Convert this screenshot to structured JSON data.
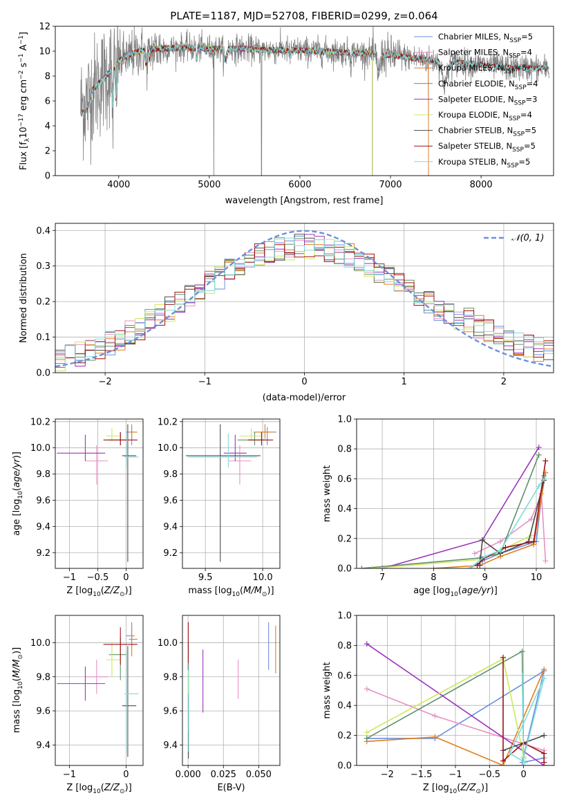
{
  "figure": {
    "title": "PLATE=1187, MJD=52708, FIBERID=0299, z=0.064"
  },
  "colors": {
    "Chabrier MILES": "#6a8fdc",
    "Salpeter MILES": "#e690c4",
    "Kroupa MILES": "#e07d1e",
    "Chabrier ELODIE": "#5f8f6a",
    "Salpeter ELODIE": "#9a33b8",
    "Kroupa ELODIE": "#cde85a",
    "Chabrier STELIB": "#4a4a4a",
    "Salpeter STELIB": "#a01010",
    "Kroupa STELIB": "#7fdcdc",
    "data": "#808080",
    "normal": "#6a8fdc"
  },
  "chart_data": [
    {
      "id": "spectrum",
      "type": "line",
      "title": "PLATE=1187, MJD=52708, FIBERID=0299, z=0.064",
      "xlabel": "wavelength [Angstrom, rest frame]",
      "ylabel": "Flux [f_λ10^-17 erg cm^-2 s^-1 A^-1]",
      "xlim": [
        3300,
        8800
      ],
      "ylim": [
        0,
        12
      ],
      "xticks": [
        4000,
        5000,
        6000,
        7000,
        8000
      ],
      "yticks": [
        0,
        2,
        4,
        6,
        8,
        10,
        12
      ],
      "legend_position": "top-right",
      "legend": [
        {
          "model": "Chabrier MILES",
          "nssp": 5
        },
        {
          "model": "Salpeter MILES",
          "nssp": 4
        },
        {
          "model": "Kroupa MILES",
          "nssp": 5
        },
        {
          "model": "Chabrier ELODIE",
          "nssp": 4
        },
        {
          "model": "Salpeter ELODIE",
          "nssp": 3
        },
        {
          "model": "Kroupa ELODIE",
          "nssp": 4
        },
        {
          "model": "Chabrier STELIB",
          "nssp": 5
        },
        {
          "model": "Salpeter STELIB",
          "nssp": 5
        },
        {
          "model": "Kroupa STELIB",
          "nssp": 5
        }
      ],
      "continuum": {
        "x": [
          3580,
          3650,
          3700,
          3780,
          3850,
          3950,
          4050,
          4150,
          4300,
          4500,
          4700,
          5000,
          5300,
          5600,
          5900,
          6200,
          6500,
          6800,
          7100,
          7400,
          7700,
          8000,
          8300,
          8750
        ],
        "y": [
          5.6,
          5.9,
          6.8,
          7.4,
          7.9,
          8.8,
          9.5,
          9.8,
          10.1,
          10.2,
          10.3,
          10.2,
          10.2,
          10.1,
          10.1,
          10.0,
          9.9,
          9.8,
          9.6,
          9.3,
          9.1,
          8.9,
          8.7,
          8.6
        ]
      },
      "model_cutoffs": {
        "Kroupa MILES": 7420,
        "Salpeter MILES": 7420,
        "Chabrier MILES": 7420,
        "Kroupa ELODIE": 6800,
        "Salpeter ELODIE": 6800,
        "Chabrier ELODIE": 6800
      }
    },
    {
      "id": "residuals",
      "type": "line",
      "xlabel": "(data-model)/error",
      "ylabel": "Normed distribution",
      "xlim": [
        -2.5,
        2.5
      ],
      "ylim": [
        0,
        0.42
      ],
      "xticks": [
        -2,
        -1,
        0,
        1,
        2
      ],
      "yticks": [
        0.0,
        0.1,
        0.2,
        0.3,
        0.4
      ],
      "legend_position": "top-right",
      "legend": [
        "𝒩(0, 1)"
      ],
      "bin_width": 0.1,
      "envelope_std": 1.15
    },
    {
      "id": "age_vs_Z",
      "type": "scatter",
      "xlabel": "Z [log10(Z/Z☉)]",
      "ylabel": "age [log10(age/yr)]",
      "xlim": [
        -1.25,
        0.3
      ],
      "ylim": [
        9.08,
        10.22
      ],
      "xticks": [
        -1,
        -0.5,
        0
      ],
      "xticklabels": [
        "−1",
        "−0.5",
        "0"
      ],
      "yticks": [
        9.2,
        9.4,
        9.6,
        9.8,
        10.0,
        10.2
      ],
      "points": [
        {
          "model": "Chabrier MILES",
          "x": 0.1,
          "xerr": [
            0.1,
            0.05
          ],
          "y": 10.12,
          "yerr": [
            0.1,
            0.04
          ]
        },
        {
          "model": "Salpeter MILES",
          "x": -0.52,
          "xerr": [
            0.2,
            0.2
          ],
          "y": 9.9,
          "yerr": [
            0.18,
            0.12
          ]
        },
        {
          "model": "Kroupa MILES",
          "x": 0.1,
          "xerr": [
            0.05,
            0.1
          ],
          "y": 10.12,
          "yerr": [
            0.05,
            0.06
          ]
        },
        {
          "model": "Chabrier ELODIE",
          "x": -0.1,
          "xerr": [
            0.2,
            0.1
          ],
          "y": 10.06,
          "yerr": [
            0.04,
            0.06
          ]
        },
        {
          "model": "Salpeter ELODIE",
          "x": -0.72,
          "xerr": [
            0.5,
            0.35
          ],
          "y": 9.96,
          "yerr": [
            0.06,
            0.14
          ]
        },
        {
          "model": "Kroupa ELODIE",
          "x": -0.25,
          "xerr": [
            0.1,
            0.15
          ],
          "y": 10.09,
          "yerr": [
            0.04,
            0.06
          ]
        },
        {
          "model": "Chabrier STELIB",
          "x": 0.03,
          "xerr": [
            0.1,
            0.15
          ],
          "y": 9.94,
          "yerr": [
            0.81,
            0.24
          ]
        },
        {
          "model": "Salpeter STELIB",
          "x": -0.1,
          "xerr": [
            0.3,
            0.3
          ],
          "y": 10.06,
          "yerr": [
            0.04,
            0.06
          ]
        },
        {
          "model": "Kroupa STELIB",
          "x": 0.02,
          "xerr": [
            0.05,
            0.2
          ],
          "y": 9.93,
          "yerr": [
            0.08,
            0.18
          ]
        }
      ]
    },
    {
      "id": "age_vs_mass",
      "type": "scatter",
      "xlabel": "mass [log10(M/M☉)]",
      "ylabel": "",
      "xlim": [
        9.3,
        10.15
      ],
      "ylim": [
        9.08,
        10.22
      ],
      "xticks": [
        9.5,
        10.0
      ],
      "xticklabels": [
        "9.5",
        "10.0"
      ],
      "yticks": [
        9.2,
        9.4,
        9.6,
        9.8,
        10.0,
        10.2
      ],
      "points": [
        {
          "model": "Chabrier MILES",
          "x": 10.04,
          "xerr": [
            0.06,
            0.08
          ],
          "y": 10.12,
          "yerr": [
            0.1,
            0.04
          ]
        },
        {
          "model": "Salpeter MILES",
          "x": 9.8,
          "xerr": [
            0.1,
            0.1
          ],
          "y": 9.9,
          "yerr": [
            0.18,
            0.12
          ]
        },
        {
          "model": "Kroupa MILES",
          "x": 10.02,
          "xerr": [
            0.1,
            0.08
          ],
          "y": 10.12,
          "yerr": [
            0.05,
            0.06
          ]
        },
        {
          "model": "Chabrier ELODIE",
          "x": 9.93,
          "xerr": [
            0.15,
            0.1
          ],
          "y": 10.06,
          "yerr": [
            0.04,
            0.06
          ]
        },
        {
          "model": "Salpeter ELODIE",
          "x": 9.76,
          "xerr": [
            0.1,
            0.1
          ],
          "y": 9.96,
          "yerr": [
            0.06,
            0.14
          ]
        },
        {
          "model": "Kroupa ELODIE",
          "x": 9.9,
          "xerr": [
            0.1,
            0.1
          ],
          "y": 10.09,
          "yerr": [
            0.04,
            0.06
          ]
        },
        {
          "model": "Chabrier STELIB",
          "x": 9.63,
          "xerr": [
            0.3,
            0.35
          ],
          "y": 9.94,
          "yerr": [
            0.81,
            0.24
          ]
        },
        {
          "model": "Salpeter STELIB",
          "x": 9.99,
          "xerr": [
            0.12,
            0.1
          ],
          "y": 10.06,
          "yerr": [
            0.04,
            0.06
          ]
        },
        {
          "model": "Kroupa STELIB",
          "x": 9.7,
          "xerr": [
            0.35,
            0.25
          ],
          "y": 9.93,
          "yerr": [
            0.08,
            0.18
          ]
        }
      ]
    },
    {
      "id": "weight_vs_age",
      "type": "line",
      "xlabel": "age [log10(age/yr)]",
      "ylabel": "mass weight",
      "xlim": [
        6.5,
        10.35
      ],
      "ylim": [
        0,
        1.0
      ],
      "xticks": [
        7,
        8,
        9,
        10
      ],
      "yticks": [
        0.0,
        0.2,
        0.4,
        0.6,
        0.8,
        1.0
      ],
      "series": [
        {
          "name": "Chabrier MILES",
          "x": [
            8.7,
            8.95,
            9.3,
            10.0,
            10.15
          ],
          "y": [
            0.0,
            0.05,
            0.1,
            0.18,
            0.62
          ]
        },
        {
          "name": "Salpeter MILES",
          "x": [
            8.8,
            9.3,
            9.9,
            10.1,
            10.18
          ],
          "y": [
            0.1,
            0.18,
            0.33,
            0.5,
            0.05
          ]
        },
        {
          "name": "Kroupa MILES",
          "x": [
            8.0,
            8.9,
            9.3,
            9.95,
            10.18
          ],
          "y": [
            0.0,
            0.02,
            0.08,
            0.16,
            0.64
          ]
        },
        {
          "name": "Chabrier ELODIE",
          "x": [
            6.6,
            8.9,
            9.3,
            10.05
          ],
          "y": [
            0.0,
            0.07,
            0.1,
            0.76
          ]
        },
        {
          "name": "Salpeter ELODIE",
          "x": [
            7.0,
            8.95,
            10.05
          ],
          "y": [
            0.0,
            0.19,
            0.81
          ]
        },
        {
          "name": "Kroupa ELODIE",
          "x": [
            6.8,
            8.95,
            9.3,
            9.9
          ],
          "y": [
            0.0,
            0.06,
            0.12,
            0.22
          ]
        },
        {
          "name": "Chabrier STELIB",
          "x": [
            8.9,
            8.95,
            9.3,
            9.85,
            10.15
          ],
          "y": [
            0.02,
            0.19,
            0.1,
            0.18,
            0.59
          ]
        },
        {
          "name": "Salpeter STELIB",
          "x": [
            8.85,
            8.95,
            9.4,
            9.95,
            10.18
          ],
          "y": [
            0.02,
            0.06,
            0.14,
            0.18,
            0.72
          ]
        },
        {
          "name": "Kroupa STELIB",
          "x": [
            8.7,
            9.0,
            9.3,
            10.05,
            10.15
          ],
          "y": [
            0.0,
            0.08,
            0.12,
            0.55,
            0.6
          ]
        }
      ]
    },
    {
      "id": "mass_vs_Z",
      "type": "scatter",
      "xlabel": "Z [log10(Z/Z☉)]",
      "ylabel": "mass [log10(M/M☉)]",
      "xlim": [
        -1.25,
        0.3
      ],
      "ylim": [
        9.28,
        10.16
      ],
      "xticks": [
        -1,
        0
      ],
      "xticklabels": [
        "−1",
        "0"
      ],
      "yticks": [
        9.4,
        9.6,
        9.8,
        10.0
      ],
      "points": [
        {
          "model": "Chabrier MILES",
          "x": 0.1,
          "xerr": [
            0.1,
            0.05
          ],
          "y": 10.04,
          "yerr": [
            0.06,
            0.08
          ]
        },
        {
          "model": "Salpeter MILES",
          "x": -0.52,
          "xerr": [
            0.2,
            0.2
          ],
          "y": 9.8,
          "yerr": [
            0.1,
            0.1
          ]
        },
        {
          "model": "Kroupa MILES",
          "x": 0.1,
          "xerr": [
            0.05,
            0.1
          ],
          "y": 10.02,
          "yerr": [
            0.1,
            0.08
          ]
        },
        {
          "model": "Chabrier ELODIE",
          "x": -0.1,
          "xerr": [
            0.2,
            0.1
          ],
          "y": 9.93,
          "yerr": [
            0.15,
            0.1
          ]
        },
        {
          "model": "Salpeter ELODIE",
          "x": -0.72,
          "xerr": [
            0.5,
            0.35
          ],
          "y": 9.76,
          "yerr": [
            0.1,
            0.1
          ]
        },
        {
          "model": "Kroupa ELODIE",
          "x": -0.25,
          "xerr": [
            0.1,
            0.15
          ],
          "y": 9.9,
          "yerr": [
            0.1,
            0.1
          ]
        },
        {
          "model": "Chabrier STELIB",
          "x": 0.03,
          "xerr": [
            0.1,
            0.15
          ],
          "y": 9.63,
          "yerr": [
            0.3,
            0.35
          ]
        },
        {
          "model": "Salpeter STELIB",
          "x": -0.1,
          "xerr": [
            0.3,
            0.3
          ],
          "y": 9.99,
          "yerr": [
            0.12,
            0.1
          ]
        },
        {
          "model": "Kroupa STELIB",
          "x": 0.02,
          "xerr": [
            0.05,
            0.2
          ],
          "y": 9.7,
          "yerr": [
            0.35,
            0.25
          ]
        }
      ]
    },
    {
      "id": "mass_vs_ebv",
      "type": "scatter",
      "xlabel": "E(B-V)",
      "ylabel": "",
      "xlim": [
        -0.004,
        0.065
      ],
      "ylim": [
        9.28,
        10.16
      ],
      "xticks": [
        0.0,
        0.025,
        0.05
      ],
      "xticklabels": [
        "0.000",
        "0.025",
        "0.050"
      ],
      "yticks": [
        9.4,
        9.6,
        9.8,
        10.0
      ],
      "points": [
        {
          "model": "Chabrier MILES",
          "x": 0.057,
          "xerr": [
            0,
            0
          ],
          "y": 9.98,
          "yerr": [
            0.14,
            0.14
          ]
        },
        {
          "model": "Salpeter MILES",
          "x": 0.0355,
          "xerr": [
            0,
            0
          ],
          "y": 9.77,
          "yerr": [
            0.1,
            0.13
          ]
        },
        {
          "model": "Kroupa MILES",
          "x": 0.062,
          "xerr": [
            0,
            0
          ],
          "y": 9.96,
          "yerr": [
            0.14,
            0.14
          ]
        },
        {
          "model": "Chabrier ELODIE",
          "x": 0.0002,
          "xerr": [
            0,
            0
          ],
          "y": 9.7,
          "yerr": [
            0.35,
            0.3
          ]
        },
        {
          "model": "Salpeter ELODIE",
          "x": 0.0105,
          "xerr": [
            0,
            0
          ],
          "y": 9.77,
          "yerr": [
            0.18,
            0.19
          ]
        },
        {
          "model": "Kroupa ELODIE",
          "x": 0.0001,
          "xerr": [
            0,
            0
          ],
          "y": 9.8,
          "yerr": [
            0.1,
            0.1
          ]
        },
        {
          "model": "Chabrier STELIB",
          "x": 0.0002,
          "xerr": [
            0,
            0
          ],
          "y": 9.4,
          "yerr": [
            0.08,
            0.08
          ]
        },
        {
          "model": "Salpeter STELIB",
          "x": 0.0001,
          "xerr": [
            0,
            0
          ],
          "y": 9.98,
          "yerr": [
            0.14,
            0.14
          ]
        },
        {
          "model": "Kroupa STELIB",
          "x": 0.0004,
          "xerr": [
            0,
            0
          ],
          "y": 9.6,
          "yerr": [
            0.24,
            0.28
          ]
        }
      ]
    },
    {
      "id": "weight_vs_Z",
      "type": "line",
      "xlabel": "Z [log10(Z/Z☉)]",
      "ylabel": "mass weight",
      "xlim": [
        -2.45,
        0.45
      ],
      "ylim": [
        0,
        1.0
      ],
      "xticks": [
        -2.0,
        -1.5,
        -1.0,
        -0.5,
        0.0
      ],
      "yticks": [
        0.0,
        0.2,
        0.4,
        0.6,
        0.8,
        1.0
      ],
      "series": [
        {
          "name": "Chabrier MILES",
          "x": [
            -2.3,
            -1.3,
            0.3,
            -0.02,
            0.3
          ],
          "y": [
            0.18,
            0.18,
            0.63,
            0.02,
            0.05
          ]
        },
        {
          "name": "Salpeter MILES",
          "x": [
            -2.3,
            -1.3,
            0.3
          ],
          "y": [
            0.51,
            0.33,
            0.1
          ]
        },
        {
          "name": "Kroupa MILES",
          "x": [
            -2.3,
            -1.3,
            -0.3,
            0.3
          ],
          "y": [
            0.16,
            0.19,
            0.0,
            0.64
          ]
        },
        {
          "name": "Chabrier ELODIE",
          "x": [
            -2.3,
            -0.02,
            0.0
          ],
          "y": [
            0.18,
            0.76,
            0.05
          ]
        },
        {
          "name": "Salpeter ELODIE",
          "x": [
            -2.3,
            0.3
          ],
          "y": [
            0.81,
            0.0
          ]
        },
        {
          "name": "Kroupa ELODIE",
          "x": [
            -2.3,
            -0.3,
            0.0
          ],
          "y": [
            0.22,
            0.71,
            0.06
          ]
        },
        {
          "name": "Chabrier STELIB",
          "x": [
            -0.3,
            0.0,
            0.3
          ],
          "y": [
            0.1,
            0.15,
            0.2
          ]
        },
        {
          "name": "Salpeter STELIB",
          "x": [
            -0.3,
            -0.3,
            0.0,
            0.3,
            0.3
          ],
          "y": [
            0.72,
            0.03,
            0.15,
            0.08,
            0.02
          ]
        },
        {
          "name": "Kroupa STELIB",
          "x": [
            -0.02,
            0.0,
            0.3,
            -0.2,
            0.02
          ],
          "y": [
            0.6,
            0.05,
            0.58,
            0.08,
            0.02
          ]
        }
      ]
    }
  ]
}
